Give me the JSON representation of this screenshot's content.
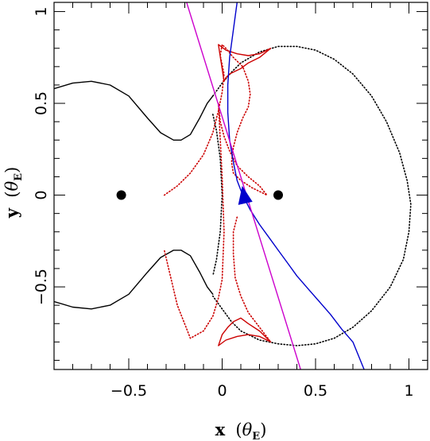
{
  "chart_data": {
    "type": "line",
    "title": "",
    "xlabel": {
      "prefix": "x",
      "open": "(",
      "symbol": "θ",
      "subscript": "E",
      "close": ")"
    },
    "ylabel": {
      "prefix": "y",
      "open": "(",
      "symbol": "θ",
      "subscript": "E",
      "close": ")"
    },
    "xlim": [
      -0.9,
      1.1
    ],
    "ylim": [
      -0.95,
      1.05
    ],
    "xticks": [
      {
        "v": -0.5,
        "label": "−0.5"
      },
      {
        "v": 0,
        "label": "0"
      },
      {
        "v": 0.5,
        "label": "0.5"
      },
      {
        "v": 1,
        "label": "1"
      }
    ],
    "yticks": [
      {
        "v": -0.5,
        "label": "−0.5"
      },
      {
        "v": 0,
        "label": "0"
      },
      {
        "v": 0.5,
        "label": "0.5"
      },
      {
        "v": 1,
        "label": "1"
      }
    ],
    "grid": false,
    "lenses": [
      {
        "x": -0.54,
        "y": 0.0
      },
      {
        "x": 0.3,
        "y": 0.0
      }
    ],
    "colors": {
      "critical_curve": "#000000",
      "caustic": "#cc0000",
      "source_trajectory": "#0000cc",
      "straight_trajectory": "#cc00cc",
      "lens_marker": "#000000"
    },
    "series": [
      {
        "role": "critical-curve-upper-left",
        "style": "solid",
        "x": [
          -0.9,
          -0.8,
          -0.7,
          -0.6,
          -0.5,
          -0.4,
          -0.33,
          -0.26,
          -0.22,
          -0.17,
          -0.12,
          -0.08,
          -0.05
        ],
        "y": [
          0.58,
          0.61,
          0.62,
          0.6,
          0.54,
          0.42,
          0.34,
          0.3,
          0.3,
          0.33,
          0.42,
          0.5,
          0.54
        ]
      },
      {
        "role": "critical-curve-big-loop",
        "style": "dotted",
        "x": [
          -0.05,
          0.0,
          0.05,
          0.1,
          0.2,
          0.3,
          0.4,
          0.5,
          0.6,
          0.7,
          0.8,
          0.88,
          0.95,
          0.99,
          1.01,
          1.0,
          0.97,
          0.9,
          0.8,
          0.7,
          0.6,
          0.5,
          0.4,
          0.3,
          0.2,
          0.1,
          0.05,
          0.0,
          -0.05
        ],
        "y": [
          0.54,
          0.61,
          0.67,
          0.72,
          0.78,
          0.81,
          0.81,
          0.79,
          0.74,
          0.66,
          0.54,
          0.4,
          0.23,
          0.08,
          -0.05,
          -0.2,
          -0.35,
          -0.5,
          -0.63,
          -0.72,
          -0.78,
          -0.81,
          -0.82,
          -0.81,
          -0.79,
          -0.74,
          -0.69,
          -0.62,
          -0.55
        ]
      },
      {
        "role": "critical-curve-inner-arc",
        "style": "dotted",
        "x": [
          -0.05,
          -0.03,
          -0.01,
          0.0,
          -0.01,
          -0.03,
          -0.05
        ],
        "y": [
          0.44,
          0.35,
          0.2,
          0.0,
          -0.2,
          -0.35,
          -0.44
        ]
      },
      {
        "role": "critical-curve-lower-left",
        "style": "solid",
        "x": [
          -0.05,
          -0.08,
          -0.12,
          -0.17,
          -0.22,
          -0.26,
          -0.33,
          -0.4,
          -0.5,
          -0.6,
          -0.7,
          -0.8,
          -0.9
        ],
        "y": [
          -0.54,
          -0.5,
          -0.42,
          -0.33,
          -0.3,
          -0.3,
          -0.34,
          -0.42,
          -0.54,
          -0.6,
          -0.62,
          -0.61,
          -0.58
        ]
      },
      {
        "role": "caustic-main",
        "style": "dotted",
        "x": [
          -0.31,
          -0.24,
          -0.17,
          -0.1,
          -0.05,
          -0.02,
          0.0,
          0.01,
          -0.01,
          0.0,
          0.02,
          0.06,
          0.11,
          0.14,
          0.15,
          0.14,
          0.11,
          0.08,
          0.06,
          0.05,
          0.06,
          0.1,
          0.16,
          0.24,
          0.2,
          0.14,
          0.08,
          0.04,
          0.01,
          -0.01,
          -0.02,
          0.0,
          0.01,
          0.0,
          -0.02,
          -0.05,
          -0.1,
          -0.17,
          -0.24,
          -0.31
        ],
        "y": [
          0.0,
          0.05,
          0.12,
          0.22,
          0.34,
          0.46,
          0.56,
          0.66,
          0.76,
          0.82,
          0.8,
          0.75,
          0.7,
          0.62,
          0.55,
          0.48,
          0.42,
          0.34,
          0.26,
          0.18,
          0.12,
          0.08,
          0.04,
          0.0,
          0.05,
          0.1,
          0.16,
          0.24,
          0.32,
          0.4,
          0.5,
          0.1,
          -0.2,
          -0.46,
          -0.56,
          -0.66,
          -0.74,
          -0.78,
          -0.6,
          -0.3
        ]
      },
      {
        "role": "caustic-top-cusp",
        "style": "solid",
        "x": [
          -0.02,
          0.02,
          0.08,
          0.14,
          0.2,
          0.26,
          0.2,
          0.14,
          0.1,
          0.06,
          0.04,
          0.02,
          0.01,
          -0.02
        ],
        "y": [
          0.82,
          0.79,
          0.77,
          0.76,
          0.77,
          0.8,
          0.75,
          0.72,
          0.69,
          0.67,
          0.66,
          0.64,
          0.62,
          0.82
        ]
      },
      {
        "role": "caustic-bottom-cusp",
        "style": "solid",
        "x": [
          -0.02,
          0.0,
          0.03,
          0.06,
          0.1,
          0.14,
          0.2,
          0.26,
          0.2,
          0.14,
          0.08,
          0.02,
          -0.02
        ],
        "y": [
          -0.82,
          -0.76,
          -0.72,
          -0.69,
          -0.67,
          -0.7,
          -0.74,
          -0.8,
          -0.77,
          -0.76,
          -0.77,
          -0.79,
          -0.82
        ]
      },
      {
        "role": "caustic-right-lower",
        "style": "dotted",
        "x": [
          0.08,
          0.06,
          0.06,
          0.07,
          0.1,
          0.14,
          0.2,
          0.26
        ],
        "y": [
          -0.12,
          -0.2,
          -0.32,
          -0.45,
          -0.55,
          -0.64,
          -0.72,
          -0.8
        ]
      },
      {
        "role": "source-trajectory",
        "style": "solid",
        "x": [
          0.08,
          0.06,
          0.04,
          0.03,
          0.03,
          0.04,
          0.06,
          0.08,
          0.11,
          0.15,
          0.2,
          0.25,
          0.3,
          0.35,
          0.4,
          0.46,
          0.52,
          0.58,
          0.64,
          0.7,
          0.76
        ],
        "y": [
          1.05,
          0.9,
          0.75,
          0.6,
          0.45,
          0.3,
          0.18,
          0.08,
          0.0,
          -0.08,
          -0.16,
          -0.23,
          -0.3,
          -0.37,
          -0.44,
          -0.51,
          -0.58,
          -0.65,
          -0.73,
          -0.8,
          -0.95
        ]
      },
      {
        "role": "straight-trajectory",
        "style": "solid",
        "x": [
          -0.19,
          0.42
        ],
        "y": [
          1.05,
          -0.95
        ]
      }
    ],
    "arrow": {
      "x": 0.12,
      "y": -0.01,
      "direction": "toward upper-left"
    }
  }
}
